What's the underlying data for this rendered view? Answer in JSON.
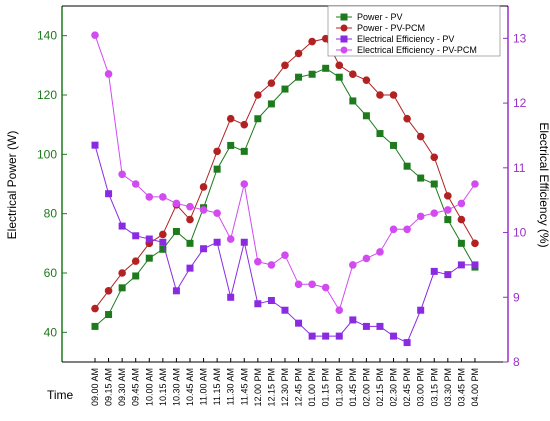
{
  "chart_data": {
    "type": "line",
    "categories": [
      "09.00 AM",
      "09.15 AM",
      "09.30 AM",
      "09.45 AM",
      "10.00 AM",
      "10.15 AM",
      "10.30 AM",
      "10.45 AM",
      "11.00 AM",
      "11.15 AM",
      "11.30 AM",
      "11.45 AM",
      "12.00 PM",
      "12.15 PM",
      "12.30 PM",
      "12.45 PM",
      "01.00 PM",
      "01.15 PM",
      "01.30 PM",
      "01.45 PM",
      "02.00 PM",
      "02.15 PM",
      "02.30 PM",
      "02.45 PM",
      "03.00 PM",
      "03.15 PM",
      "03.30 PM",
      "03.45 PM",
      "04.00 PM"
    ],
    "xlabel": "Time",
    "ylabel_left": "Electrical Power (W)",
    "ylabel_right": "Electrical Efficiency (%)",
    "ylim_left": [
      30,
      150
    ],
    "ylim_right": [
      8,
      13.5
    ],
    "yticks_left": [
      40,
      60,
      80,
      100,
      120,
      140
    ],
    "yticks_right": [
      8,
      9,
      10,
      11,
      12,
      13
    ],
    "legend_position": "top-right",
    "series": [
      {
        "name": "Power - PV",
        "axis": "left",
        "color": "#1d7a1d",
        "marker": "square",
        "values": [
          42,
          46,
          55,
          59,
          65,
          68,
          74,
          70,
          82,
          95,
          103,
          101,
          112,
          117,
          122,
          126,
          127,
          129,
          126,
          118,
          113,
          107,
          103,
          96,
          92,
          90,
          78,
          70,
          62
        ]
      },
      {
        "name": "Power - PV-PCM",
        "axis": "left",
        "color": "#b22222",
        "marker": "circle",
        "values": [
          48,
          54,
          60,
          64,
          70,
          73,
          83,
          78,
          89,
          101,
          112,
          110,
          120,
          124,
          130,
          134,
          138,
          139,
          130,
          127,
          125,
          120,
          120,
          112,
          106,
          99,
          86,
          78,
          70
        ]
      },
      {
        "name": "Electrical Efficiency - PV",
        "axis": "right",
        "color": "#8a2be2",
        "marker": "square",
        "values": [
          11.35,
          10.6,
          10.1,
          9.95,
          9.9,
          9.85,
          9.1,
          9.45,
          9.75,
          9.85,
          9.0,
          9.85,
          8.9,
          8.95,
          8.8,
          8.6,
          8.4,
          8.4,
          8.4,
          8.65,
          8.55,
          8.55,
          8.4,
          8.3,
          8.8,
          9.4,
          9.35,
          9.5,
          9.5
        ]
      },
      {
        "name": "Electrical Efficiency -  PV-PCM",
        "axis": "right",
        "color": "#d24bf0",
        "marker": "circle",
        "values": [
          13.05,
          12.45,
          10.9,
          10.75,
          10.55,
          10.55,
          10.45,
          10.4,
          10.35,
          10.3,
          9.9,
          10.75,
          9.55,
          9.5,
          9.65,
          9.2,
          9.2,
          9.15,
          8.8,
          9.5,
          9.6,
          9.7,
          10.05,
          10.05,
          10.25,
          10.3,
          10.35,
          10.45,
          10.75
        ]
      }
    ]
  }
}
